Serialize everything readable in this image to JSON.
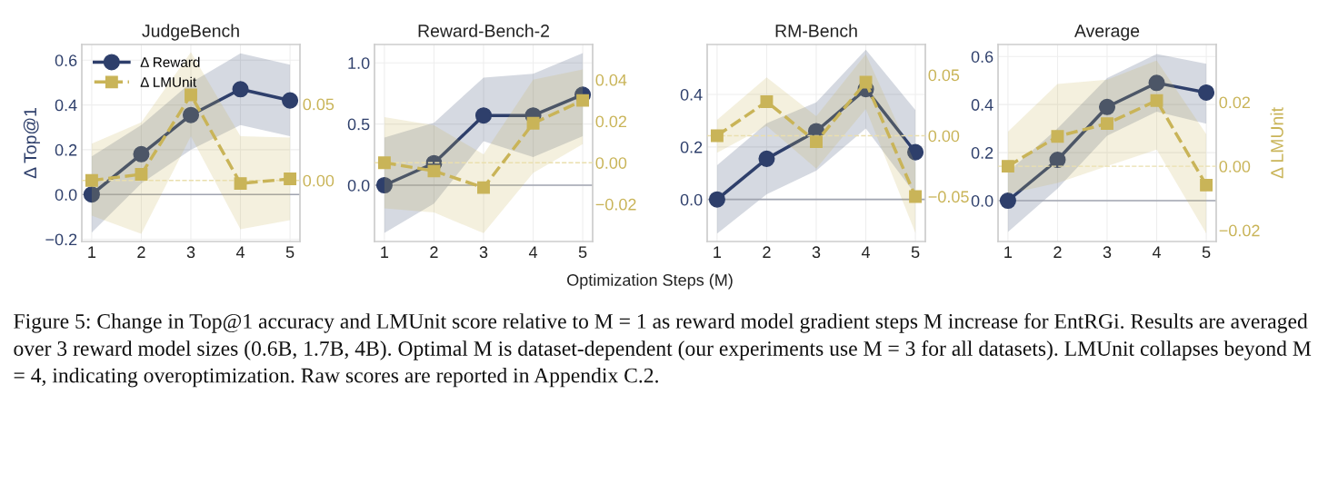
{
  "chart_data": [
    {
      "type": "line",
      "title": "JudgeBench",
      "ylabel": "Δ Top@1",
      "categories": [
        "1",
        "2",
        "3",
        "4",
        "5"
      ],
      "annotations": [
        "Figure 5: Change in Top@1 accuracy and LMUnit score relative to M = 1 as reward model gradient steps M increase for EntRGi. Results are averaged over 3 reward model sizes (0.6B, 1.7B, 4B). Optimal M is dataset-dependent (our experiments use M = 3 for all datasets). LMUnit collapses beyond M = 4, indicating overoptimization. Raw scores are reported in Appendix C.2."
      ],
      "series": [
        {
          "name": "Δ Reward",
          "color": "#2e3f6b",
          "marker": "circle",
          "line_style": "solid",
          "values": [
            0.0,
            0.18,
            0.355,
            0.47,
            0.42
          ],
          "lower": [
            -0.17,
            0.05,
            0.2,
            0.31,
            0.26
          ],
          "upper": [
            0.17,
            0.31,
            0.5,
            0.63,
            0.58
          ]
        },
        {
          "name": "Δ LMUnit",
          "color": "#c9b458",
          "marker": "square",
          "line_style": "dashed",
          "axis": "y2",
          "values": [
            0.0,
            0.004,
            0.056,
            -0.002,
            0.001
          ],
          "lower": [
            -0.023,
            -0.035,
            0.029,
            -0.032,
            -0.026
          ],
          "upper": [
            0.024,
            0.038,
            0.084,
            0.029,
            0.028
          ]
        }
      ],
      "ylim": [
        -0.21,
        0.67
      ],
      "yticks": [
        {
          "value": -0.2,
          "label": "−0.2"
        },
        {
          "value": 0.0,
          "label": "0.0"
        },
        {
          "value": 0.2,
          "label": "0.2"
        },
        {
          "value": 0.4,
          "label": "0.4"
        },
        {
          "value": 0.6,
          "label": "0.6"
        }
      ],
      "y2lim": [
        -0.04,
        0.089
      ],
      "y2ticks": [
        {
          "value": 0.0,
          "label": "0.00"
        },
        {
          "value": 0.05,
          "label": "0.05"
        }
      ],
      "ref_lines": [
        {
          "axis": "y",
          "value": 0,
          "color": "#a0a4b0",
          "line_style": "solid"
        },
        {
          "axis": "y2",
          "value": 0,
          "color": "#eadfae",
          "line_style": "dashed"
        }
      ],
      "grid": true,
      "legend": "top left"
    },
    {
      "type": "line",
      "title": "Reward-Bench-2",
      "xlabel": "Optimization Steps (M)",
      "categories": [
        "1",
        "2",
        "3",
        "4",
        "5"
      ],
      "series": [
        {
          "color": "#2e3f6b",
          "marker": "circle",
          "line_style": "solid",
          "values": [
            0.0,
            0.18,
            0.57,
            0.57,
            0.74
          ],
          "lower": [
            -0.39,
            -0.15,
            0.36,
            0.23,
            0.4
          ],
          "upper": [
            0.39,
            0.51,
            0.88,
            0.91,
            1.08
          ]
        },
        {
          "color": "#c9b458",
          "marker": "square",
          "line_style": "dashed",
          "axis": "y2",
          "values": [
            0.0,
            -0.004,
            -0.012,
            0.019,
            0.03
          ],
          "lower": [
            -0.022,
            -0.024,
            -0.034,
            -0.005,
            0.009
          ],
          "upper": [
            0.022,
            0.018,
            0.004,
            0.04,
            0.045
          ]
        }
      ],
      "ylim": [
        -0.46,
        1.15
      ],
      "yticks": [
        {
          "value": 0.0,
          "label": "0.0"
        },
        {
          "value": 0.5,
          "label": "0.5"
        },
        {
          "value": 1.0,
          "label": "1.0"
        }
      ],
      "y2lim": [
        -0.038,
        0.057
      ],
      "y2ticks": [
        {
          "value": -0.02,
          "label": "−0.02"
        },
        {
          "value": 0.0,
          "label": "0.00"
        },
        {
          "value": 0.02,
          "label": "0.02"
        },
        {
          "value": 0.04,
          "label": "0.04"
        }
      ],
      "ref_lines": [
        {
          "axis": "y",
          "value": 0,
          "color": "#a0a4b0",
          "line_style": "solid"
        },
        {
          "axis": "y2",
          "value": 0,
          "color": "#eadfae",
          "line_style": "dashed"
        }
      ],
      "grid": true
    },
    {
      "type": "line",
      "title": "RM-Bench",
      "categories": [
        "1",
        "2",
        "3",
        "4",
        "5"
      ],
      "series": [
        {
          "color": "#2e3f6b",
          "marker": "circle",
          "line_style": "solid",
          "values": [
            0.0,
            0.155,
            0.26,
            0.42,
            0.18
          ],
          "lower": [
            -0.13,
            0.02,
            0.11,
            0.27,
            0.02
          ],
          "upper": [
            0.13,
            0.29,
            0.37,
            0.57,
            0.34
          ]
        },
        {
          "color": "#c9b458",
          "marker": "square",
          "line_style": "dashed",
          "axis": "y2",
          "values": [
            0.0,
            0.028,
            -0.005,
            0.044,
            -0.05
          ],
          "lower": [
            -0.014,
            0.008,
            -0.027,
            0.022,
            -0.08
          ],
          "upper": [
            0.013,
            0.048,
            0.016,
            0.067,
            -0.023
          ]
        }
      ],
      "ylim": [
        -0.16,
        0.59
      ],
      "yticks": [
        {
          "value": 0.0,
          "label": "0.0"
        },
        {
          "value": 0.2,
          "label": "0.2"
        },
        {
          "value": 0.4,
          "label": "0.4"
        }
      ],
      "y2lim": [
        -0.087,
        0.075
      ],
      "y2ticks": [
        {
          "value": -0.05,
          "label": "−0.05"
        },
        {
          "value": 0.0,
          "label": "0.00"
        },
        {
          "value": 0.05,
          "label": "0.05"
        }
      ],
      "ref_lines": [
        {
          "axis": "y",
          "value": 0,
          "color": "#a0a4b0",
          "line_style": "solid"
        },
        {
          "axis": "y2",
          "value": 0,
          "color": "#eadfae",
          "line_style": "dashed"
        }
      ],
      "grid": true
    },
    {
      "type": "line",
      "title": "Average",
      "y2label": "Δ LMUnit",
      "categories": [
        "1",
        "2",
        "3",
        "4",
        "5"
      ],
      "series": [
        {
          "color": "#2e3f6b",
          "marker": "circle",
          "line_style": "solid",
          "values": [
            0.0,
            0.17,
            0.39,
            0.49,
            0.45
          ],
          "lower": [
            -0.13,
            0.05,
            0.27,
            0.37,
            0.32
          ],
          "upper": [
            0.12,
            0.3,
            0.51,
            0.61,
            0.57
          ]
        },
        {
          "color": "#c9b458",
          "marker": "square",
          "line_style": "dashed",
          "axis": "y2",
          "values": [
            0.0,
            0.0093,
            0.0133,
            0.0205,
            -0.0059
          ],
          "lower": [
            -0.0086,
            -0.0052,
            0.0,
            0.0052,
            -0.021
          ],
          "upper": [
            0.0108,
            0.0257,
            0.027,
            0.033,
            0.01
          ]
        }
      ],
      "ylim": [
        -0.17,
        0.65
      ],
      "yticks": [
        {
          "value": 0.0,
          "label": "0.0"
        },
        {
          "value": 0.2,
          "label": "0.2"
        },
        {
          "value": 0.4,
          "label": "0.4"
        },
        {
          "value": 0.6,
          "label": "0.6"
        }
      ],
      "y2lim": [
        -0.0235,
        0.038
      ],
      "y2ticks": [
        {
          "value": -0.02,
          "label": "−0.02"
        },
        {
          "value": 0.0,
          "label": "0.00"
        },
        {
          "value": 0.02,
          "label": "0.02"
        }
      ],
      "ref_lines": [
        {
          "axis": "y",
          "value": 0,
          "color": "#a0a4b0",
          "line_style": "solid"
        },
        {
          "axis": "y2",
          "value": 0,
          "color": "#eadfae",
          "line_style": "dashed"
        }
      ],
      "grid": true
    }
  ]
}
